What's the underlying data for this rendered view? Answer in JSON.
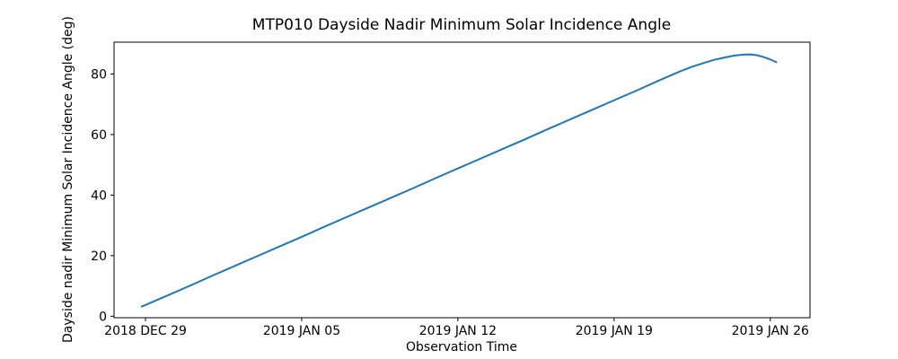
{
  "figure": {
    "background_color": "#ffffff",
    "text_color": "#000000"
  },
  "chart_data": {
    "type": "line",
    "title": "MTP010 Dayside Nadir Minimum Solar Incidence Angle",
    "xlabel": "Observation Time",
    "ylabel": "Dayside nadir Minimum Solar Incidence Angle (deg)",
    "x_tick_labels": [
      "2018 DEC 29",
      "2019 JAN 05",
      "2019 JAN 12",
      "2019 JAN 19",
      "2019 JAN 26"
    ],
    "x_tick_days": [
      0,
      7,
      14,
      21,
      28
    ],
    "y_ticks": [
      0,
      20,
      40,
      60,
      80
    ],
    "xlim_days": [
      -1.41,
      29.78
    ],
    "ylim": [
      -0.5,
      90.5
    ],
    "grid": false,
    "legend": "none",
    "line_color": "#1f77b4",
    "line_width": 2,
    "series": [
      {
        "name": "dayside-nadir-minimum-solar-incidence-angle",
        "x_days_from_2018_dec_29": [
          -0.2,
          0,
          1,
          2,
          3,
          4,
          5,
          6,
          7,
          8,
          9,
          10,
          11,
          12,
          13,
          14,
          15,
          16,
          17,
          18,
          19,
          20,
          21,
          22,
          23,
          24,
          24.5,
          25,
          25.5,
          26,
          26.4,
          26.8,
          27.1,
          27.4,
          27.7,
          28,
          28.3
        ],
        "y_deg": [
          3.1,
          3.7,
          6.9,
          10.1,
          13.4,
          16.6,
          19.8,
          23.0,
          26.2,
          29.5,
          32.7,
          35.9,
          39.1,
          42.3,
          45.6,
          48.8,
          52.0,
          55.2,
          58.4,
          61.7,
          64.9,
          68.1,
          71.3,
          74.5,
          77.8,
          81.0,
          82.4,
          83.6,
          84.7,
          85.5,
          86.1,
          86.4,
          86.45,
          86.2,
          85.6,
          84.8,
          83.8
        ]
      }
    ]
  }
}
